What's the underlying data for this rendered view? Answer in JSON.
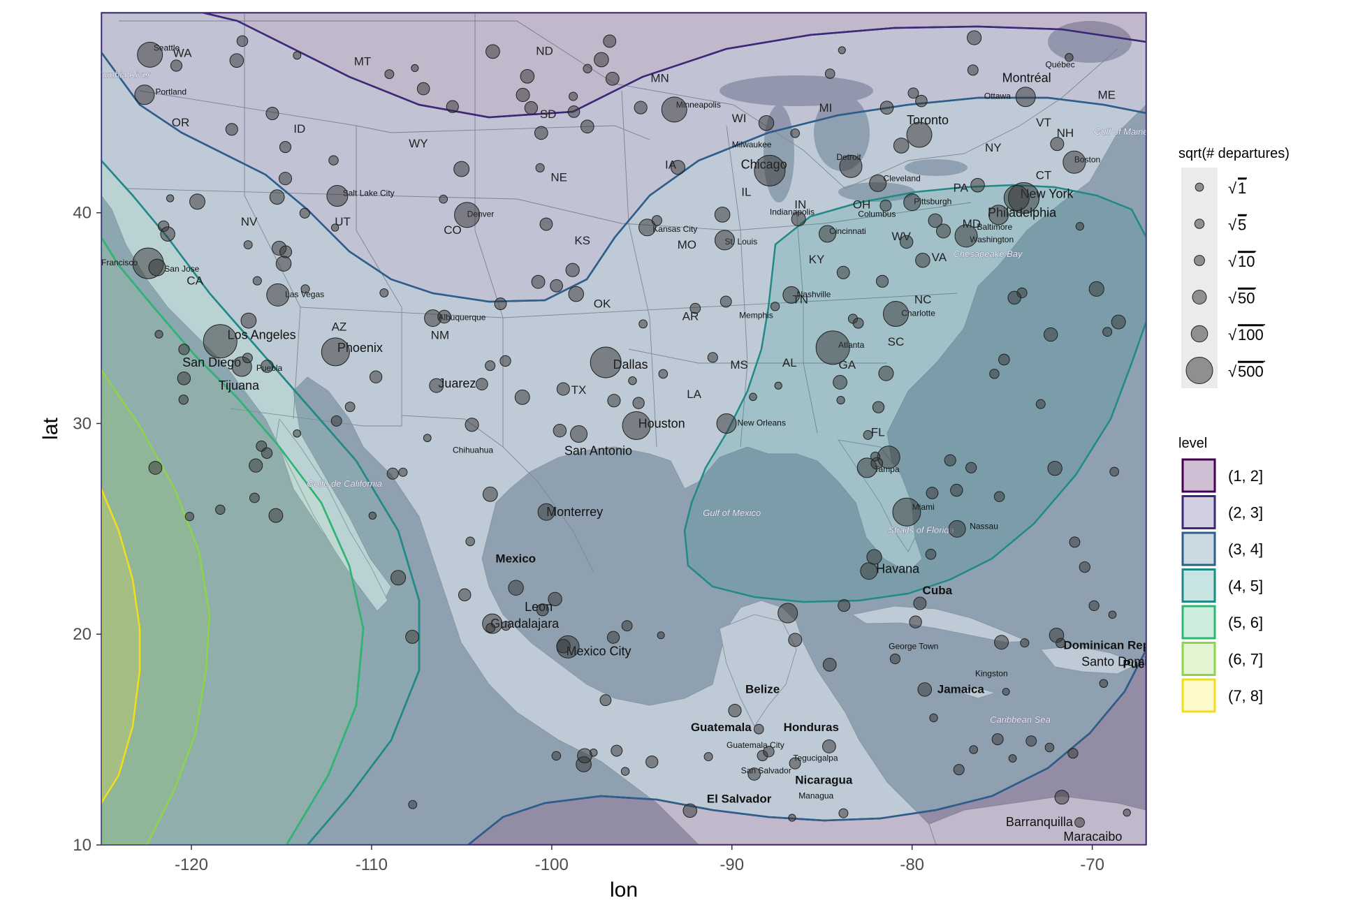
{
  "axes": {
    "x_title": "lon",
    "y_title": "lat",
    "xlim": [
      -125,
      -67
    ],
    "ylim": [
      10,
      49.5
    ],
    "x_ticks": [
      {
        "v": -120,
        "label": "-120"
      },
      {
        "v": -110,
        "label": "-110"
      },
      {
        "v": -100,
        "label": "-100"
      },
      {
        "v": -90,
        "label": "-90"
      },
      {
        "v": -80,
        "label": "-80"
      },
      {
        "v": -70,
        "label": "-70"
      }
    ],
    "y_ticks": [
      {
        "v": 10,
        "label": "10"
      },
      {
        "v": 20,
        "label": "20"
      },
      {
        "v": 30,
        "label": "30"
      },
      {
        "v": 40,
        "label": "40"
      }
    ]
  },
  "legend_size": {
    "title": "sqrt(# departures)",
    "entries": [
      {
        "label": "1",
        "value": 1
      },
      {
        "label": "5",
        "value": 5
      },
      {
        "label": "10",
        "value": 10
      },
      {
        "label": "50",
        "value": 50
      },
      {
        "label": "100",
        "value": 100
      },
      {
        "label": "500",
        "value": 500
      }
    ]
  },
  "legend_level": {
    "title": "level",
    "entries": [
      {
        "label": "(1, 2]",
        "fill": "#440154",
        "stroke": "#440154"
      },
      {
        "label": "(2, 3]",
        "fill": "#443a83",
        "stroke": "#3b2a7a"
      },
      {
        "label": "(3, 4]",
        "fill": "#31688e",
        "stroke": "#2c5f8a"
      },
      {
        "label": "(4, 5]",
        "fill": "#21908d",
        "stroke": "#1f8a86"
      },
      {
        "label": "(5, 6]",
        "fill": "#35b779",
        "stroke": "#2db671"
      },
      {
        "label": "(6, 7]",
        "fill": "#8fd744",
        "stroke": "#8cd44a"
      },
      {
        "label": "(7, 8]",
        "fill": "#fde725",
        "stroke": "#f1de1c"
      }
    ]
  },
  "chart_data": {
    "type": "scatter",
    "coord": "lon/lat",
    "size_variable": "sqrt(# departures)",
    "fill_variable": "level",
    "points": [
      [
        -122.3,
        47.5,
        18
      ],
      [
        -122.6,
        45.6,
        14
      ],
      [
        -122.4,
        37.6,
        22
      ],
      [
        -121.9,
        37.4,
        12
      ],
      [
        -118.4,
        33.9,
        24
      ],
      [
        -117.2,
        32.7,
        14
      ],
      [
        -115.2,
        36.1,
        16
      ],
      [
        -112.0,
        33.4,
        20
      ],
      [
        -111.9,
        40.8,
        15
      ],
      [
        -104.7,
        39.9,
        18
      ],
      [
        -106.6,
        35.0,
        12
      ],
      [
        -106.4,
        31.8,
        10
      ],
      [
        -97.0,
        32.9,
        22
      ],
      [
        -95.3,
        29.9,
        20
      ],
      [
        -98.5,
        29.5,
        12
      ],
      [
        -93.2,
        44.9,
        18
      ],
      [
        -87.9,
        42.0,
        22
      ],
      [
        -90.4,
        38.7,
        14
      ],
      [
        -94.7,
        39.3,
        12
      ],
      [
        -84.4,
        33.6,
        24
      ],
      [
        -80.9,
        35.2,
        18
      ],
      [
        -80.3,
        25.8,
        20
      ],
      [
        -82.5,
        27.9,
        14
      ],
      [
        -81.3,
        28.4,
        16
      ],
      [
        -73.8,
        40.7,
        22
      ],
      [
        -74.2,
        40.7,
        18
      ],
      [
        -75.2,
        39.9,
        14
      ],
      [
        -77.0,
        38.9,
        16
      ],
      [
        -71.0,
        42.4,
        16
      ],
      [
        -83.4,
        42.2,
        16
      ],
      [
        -86.7,
        36.1,
        12
      ],
      [
        -90.3,
        30.0,
        14
      ],
      [
        -80.0,
        40.5,
        12
      ],
      [
        -81.9,
        41.4,
        12
      ],
      [
        -84.7,
        39.0,
        12
      ],
      [
        -86.3,
        39.7,
        10
      ],
      [
        -99.1,
        19.4,
        16
      ],
      [
        -103.3,
        20.5,
        14
      ],
      [
        -100.3,
        25.8,
        12
      ],
      [
        -86.9,
        21.0,
        14
      ],
      [
        -82.4,
        23.0,
        12
      ],
      [
        -77.5,
        25.0,
        12
      ],
      [
        -79.6,
        43.7,
        18
      ],
      [
        -73.7,
        45.5,
        14
      ]
    ],
    "contour_levels": [
      "(1, 2]",
      "(2, 3]",
      "(3, 4]",
      "(4, 5]",
      "(5, 6]",
      "(6, 7]",
      "(7, 8]"
    ]
  },
  "map_labels": {
    "states": [
      {
        "t": "WA",
        "lon": -120.5,
        "lat": 47.4
      },
      {
        "t": "MT",
        "lon": -110.5,
        "lat": 47.0
      },
      {
        "t": "ND",
        "lon": -100.4,
        "lat": 47.5
      },
      {
        "t": "MN",
        "lon": -94.0,
        "lat": 46.2
      },
      {
        "t": "OR",
        "lon": -120.6,
        "lat": 44.1
      },
      {
        "t": "ID",
        "lon": -114.0,
        "lat": 43.8
      },
      {
        "t": "WY",
        "lon": -107.4,
        "lat": 43.1
      },
      {
        "t": "SD",
        "lon": -100.2,
        "lat": 44.5
      },
      {
        "t": "WI",
        "lon": -89.6,
        "lat": 44.3
      },
      {
        "t": "MI",
        "lon": -84.8,
        "lat": 44.8
      },
      {
        "t": "ME",
        "lon": -69.2,
        "lat": 45.4
      },
      {
        "t": "VT",
        "lon": -72.7,
        "lat": 44.1
      },
      {
        "t": "NH",
        "lon": -71.5,
        "lat": 43.6
      },
      {
        "t": "NY",
        "lon": -75.5,
        "lat": 42.9
      },
      {
        "t": "IA",
        "lon": -93.4,
        "lat": 42.1
      },
      {
        "t": "NE",
        "lon": -99.6,
        "lat": 41.5
      },
      {
        "t": "CT",
        "lon": -72.7,
        "lat": 41.6
      },
      {
        "t": "PA",
        "lon": -77.3,
        "lat": 41.0
      },
      {
        "t": "IL",
        "lon": -89.2,
        "lat": 40.8
      },
      {
        "t": "IN",
        "lon": -86.2,
        "lat": 40.2
      },
      {
        "t": "OH",
        "lon": -82.8,
        "lat": 40.2
      },
      {
        "t": "NV",
        "lon": -116.8,
        "lat": 39.4
      },
      {
        "t": "UT",
        "lon": -111.6,
        "lat": 39.4
      },
      {
        "t": "CO",
        "lon": -105.5,
        "lat": 39.0
      },
      {
        "t": "MD",
        "lon": -76.7,
        "lat": 39.3
      },
      {
        "t": "KS",
        "lon": -98.3,
        "lat": 38.5
      },
      {
        "t": "MO",
        "lon": -92.5,
        "lat": 38.3
      },
      {
        "t": "WV",
        "lon": -80.6,
        "lat": 38.7
      },
      {
        "t": "VA",
        "lon": -78.5,
        "lat": 37.7
      },
      {
        "t": "KY",
        "lon": -85.3,
        "lat": 37.6
      },
      {
        "t": "CA",
        "lon": -119.8,
        "lat": 36.6
      },
      {
        "t": "NC",
        "lon": -79.4,
        "lat": 35.7
      },
      {
        "t": "TN",
        "lon": -86.2,
        "lat": 35.7
      },
      {
        "t": "OK",
        "lon": -97.2,
        "lat": 35.5
      },
      {
        "t": "AR",
        "lon": -92.3,
        "lat": 34.9
      },
      {
        "t": "AZ",
        "lon": -111.8,
        "lat": 34.4
      },
      {
        "t": "NM",
        "lon": -106.2,
        "lat": 34.0
      },
      {
        "t": "SC",
        "lon": -80.9,
        "lat": 33.7
      },
      {
        "t": "MS",
        "lon": -89.6,
        "lat": 32.6
      },
      {
        "t": "AL",
        "lon": -86.8,
        "lat": 32.7
      },
      {
        "t": "GA",
        "lon": -83.6,
        "lat": 32.6
      },
      {
        "t": "TX",
        "lon": -98.5,
        "lat": 31.4
      },
      {
        "t": "LA",
        "lon": -92.1,
        "lat": 31.2
      },
      {
        "t": "FL",
        "lon": -81.9,
        "lat": 29.4
      }
    ],
    "cities_small": [
      {
        "t": "Seattle",
        "lon": -122.1,
        "lat": 47.7
      },
      {
        "t": "Portland",
        "lon": -122.0,
        "lat": 45.6
      },
      {
        "t": "Salt Lake City",
        "lon": -111.6,
        "lat": 40.8
      },
      {
        "t": "Denver",
        "lon": -104.7,
        "lat": 39.8
      },
      {
        "t": "Minneapolis",
        "lon": -93.1,
        "lat": 45.0
      },
      {
        "t": "Milwaukee",
        "lon": -90.0,
        "lat": 43.1
      },
      {
        "t": "Detroit",
        "lon": -84.2,
        "lat": 42.5
      },
      {
        "t": "Ottawa",
        "lon": -76.0,
        "lat": 45.4
      },
      {
        "t": "Québec",
        "lon": -72.6,
        "lat": 46.9
      },
      {
        "t": "Boston",
        "lon": -71.0,
        "lat": 42.4
      },
      {
        "t": "Cleveland",
        "lon": -81.6,
        "lat": 41.5
      },
      {
        "t": "Pittsburgh",
        "lon": -79.9,
        "lat": 40.4
      },
      {
        "t": "Columbus",
        "lon": -83.0,
        "lat": 39.8
      },
      {
        "t": "Cincinnati",
        "lon": -84.6,
        "lat": 39.0
      },
      {
        "t": "Indianapolis",
        "lon": -87.9,
        "lat": 39.9
      },
      {
        "t": "Kansas City",
        "lon": -94.4,
        "lat": 39.1
      },
      {
        "t": "St. Louis",
        "lon": -90.4,
        "lat": 38.5
      },
      {
        "t": "Baltimore",
        "lon": -76.4,
        "lat": 39.2
      },
      {
        "t": "Washington",
        "lon": -76.8,
        "lat": 38.6
      },
      {
        "t": "Las Vegas",
        "lon": -114.8,
        "lat": 36.0
      },
      {
        "t": "Albuquerque",
        "lon": -106.3,
        "lat": 34.9
      },
      {
        "t": "Nashville",
        "lon": -86.4,
        "lat": 36.0
      },
      {
        "t": "Memphis",
        "lon": -89.6,
        "lat": 35.0
      },
      {
        "t": "Charlotte",
        "lon": -80.6,
        "lat": 35.1
      },
      {
        "t": "Atlanta",
        "lon": -84.1,
        "lat": 33.6
      },
      {
        "t": "New Orleans",
        "lon": -89.7,
        "lat": 29.9
      },
      {
        "t": "Tampa",
        "lon": -82.1,
        "lat": 27.7
      },
      {
        "t": "Miami",
        "lon": -80.0,
        "lat": 25.9
      },
      {
        "t": "Nassau",
        "lon": -76.8,
        "lat": 25.0
      },
      {
        "t": "San Jose",
        "lon": -121.5,
        "lat": 37.2
      },
      {
        "t": "Francisco",
        "lon": -125.0,
        "lat": 37.5
      },
      {
        "t": "Puebla",
        "lon": -116.4,
        "lat": 32.5
      },
      {
        "t": "Chihuahua",
        "lon": -105.5,
        "lat": 28.6
      },
      {
        "t": "George Town",
        "lon": -81.3,
        "lat": 19.3
      },
      {
        "t": "Kingston",
        "lon": -76.5,
        "lat": 18.0
      },
      {
        "t": "Guatemala City",
        "lon": -90.3,
        "lat": 14.6
      },
      {
        "t": "Tegucigalpa",
        "lon": -86.6,
        "lat": 14.0
      },
      {
        "t": "San Salvador",
        "lon": -89.5,
        "lat": 13.4
      },
      {
        "t": "Managua",
        "lon": -86.3,
        "lat": 12.2
      }
    ],
    "cities_big": [
      {
        "t": "Montréal",
        "lon": -75.0,
        "lat": 46.2
      },
      {
        "t": "Toronto",
        "lon": -80.3,
        "lat": 44.2
      },
      {
        "t": "Chicago",
        "lon": -89.5,
        "lat": 42.1
      },
      {
        "t": "New York",
        "lon": -74.0,
        "lat": 40.7
      },
      {
        "t": "Philadelphia",
        "lon": -75.8,
        "lat": 39.8
      },
      {
        "t": "Los Angeles",
        "lon": -118.0,
        "lat": 34.0
      },
      {
        "t": "San Diego",
        "lon": -120.5,
        "lat": 32.7
      },
      {
        "t": "Tijuana",
        "lon": -118.5,
        "lat": 31.6
      },
      {
        "t": "Phoenix",
        "lon": -111.9,
        "lat": 33.4
      },
      {
        "t": "Juarez",
        "lon": -106.3,
        "lat": 31.7
      },
      {
        "t": "Dallas",
        "lon": -96.6,
        "lat": 32.6
      },
      {
        "t": "Houston",
        "lon": -95.2,
        "lat": 29.8
      },
      {
        "t": "San Antonio",
        "lon": -99.3,
        "lat": 28.5
      },
      {
        "t": "Monterrey",
        "lon": -100.3,
        "lat": 25.6
      },
      {
        "t": "Leon",
        "lon": -101.5,
        "lat": 21.1
      },
      {
        "t": "Guadalajara",
        "lon": -103.4,
        "lat": 20.3
      },
      {
        "t": "Mexico City",
        "lon": -99.2,
        "lat": 19.0
      },
      {
        "t": "Havana",
        "lon": -82.0,
        "lat": 22.9
      },
      {
        "t": "Santo Domingo",
        "lon": -70.6,
        "lat": 18.5
      },
      {
        "t": "Barranquilla",
        "lon": -74.8,
        "lat": 10.9
      },
      {
        "t": "Maracaibo",
        "lon": -71.6,
        "lat": 10.2
      }
    ],
    "countries": [
      {
        "t": "Mexico",
        "lon": -102.0,
        "lat": 23.4
      },
      {
        "t": "Cuba",
        "lon": -78.6,
        "lat": 21.9
      },
      {
        "t": "Dominican Repu",
        "lon": -69.0,
        "lat": 19.3
      },
      {
        "t": "Pue",
        "lon": -67.7,
        "lat": 18.4
      },
      {
        "t": "Jamaica",
        "lon": -77.3,
        "lat": 17.2
      },
      {
        "t": "Belize",
        "lon": -88.3,
        "lat": 17.2
      },
      {
        "t": "Guatemala",
        "lon": -90.6,
        "lat": 15.4
      },
      {
        "t": "Honduras",
        "lon": -85.6,
        "lat": 15.4
      },
      {
        "t": "Nicaragua",
        "lon": -84.9,
        "lat": 12.9
      },
      {
        "t": "El Salvador",
        "lon": -89.6,
        "lat": 12.0
      }
    ],
    "water": [
      {
        "t": "Columbia River",
        "lon": -124.0,
        "lat": 46.4
      },
      {
        "t": "Gulf of Maine",
        "lon": -68.4,
        "lat": 43.7
      },
      {
        "t": "Chesapeake Bay",
        "lon": -75.8,
        "lat": 37.9
      },
      {
        "t": "Golfo de California",
        "lon": -111.5,
        "lat": 27.0
      },
      {
        "t": "Gulf of Mexico",
        "lon": -90.0,
        "lat": 25.6
      },
      {
        "t": "Straits of Florida",
        "lon": -79.5,
        "lat": 24.8
      },
      {
        "t": "Caribbean Sea",
        "lon": -74.0,
        "lat": 15.8
      }
    ]
  }
}
